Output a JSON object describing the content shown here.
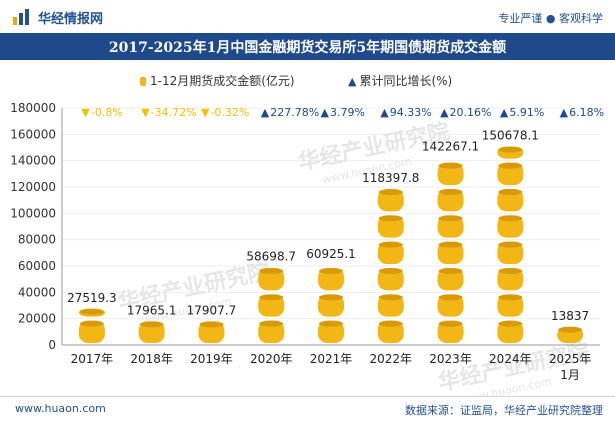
{
  "header": {
    "brand": "华经情报网",
    "tagline": "专业严谨 ● 客观科学"
  },
  "footer": {
    "url": "www.huaon.com",
    "source": "数据来源：证监局，华经产业研究院整理"
  },
  "watermark": "华经产业研究院",
  "watermark_url": "www.huaon.com",
  "colors": {
    "title_bg": "#1e4a8c",
    "coin": "#f2b714",
    "coin_dark": "#d89a08",
    "down": "#f2c200",
    "up": "#1e4a8c"
  },
  "chart_data": {
    "type": "bar",
    "title": "2017-2025年1月中国金融期货交易所5年期国债期货成交金额",
    "categories": [
      "2017年",
      "2018年",
      "2019年",
      "2020年",
      "2021年",
      "2022年",
      "2023年",
      "2024年",
      "2025年1月"
    ],
    "series": [
      {
        "name": "1-12月期货成交金额(亿元)",
        "values": [
          27519.3,
          17965.1,
          17907.7,
          58698.7,
          60925.1,
          118397.8,
          142267.1,
          150678.1,
          13837
        ],
        "labels": [
          "27519.3",
          "17965.1",
          "17907.7",
          "58698.7",
          "60925.1",
          "118397.8",
          "142267.1",
          "150678.1",
          "13837"
        ]
      },
      {
        "name": "累计同比增长(%)",
        "values": [
          -0.8,
          -34.72,
          -0.32,
          227.78,
          3.79,
          94.33,
          20.16,
          5.91,
          6.18
        ],
        "labels": [
          "-0.8%",
          "-34.72%",
          "-0.32%",
          "227.78%",
          "3.79%",
          "94.33%",
          "20.16%",
          "5.91%",
          "6.18%"
        ]
      }
    ],
    "ylim": [
      0,
      180000
    ],
    "yticks": [
      0,
      20000,
      40000,
      60000,
      80000,
      100000,
      120000,
      140000,
      160000,
      180000
    ],
    "ytick_labels": [
      "0",
      "20000",
      "40000",
      "60000",
      "80000",
      "100000",
      "120000",
      "140000",
      "160000",
      "180000"
    ],
    "legend_position": "top"
  }
}
